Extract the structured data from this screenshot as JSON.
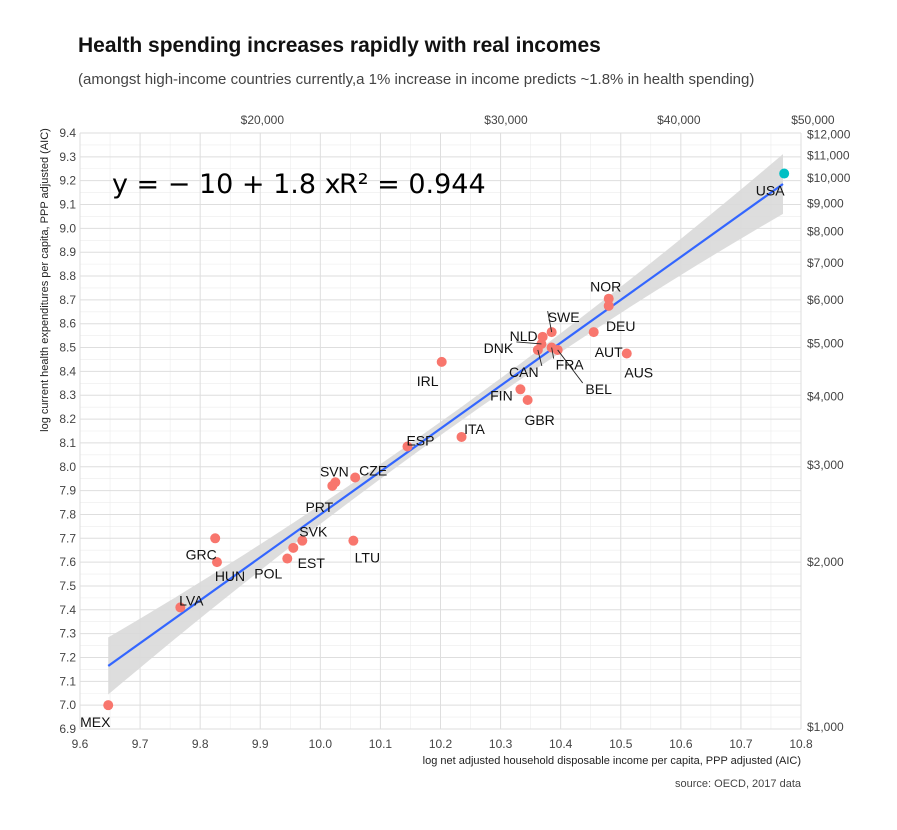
{
  "title": "Health spending increases rapidly with real incomes",
  "subtitle": "(amongst high-income countries currently,a 1% increase in income predicts ~1.8% in health spending)",
  "source": "source: OECD, 2017 data",
  "chart_data": {
    "type": "scatter",
    "xlabel": "log net adjusted household disposable income per capita, PPP adjusted (AIC)",
    "ylabel": "log current health expenditures per capita, PPP adjusted (AIC)",
    "xlim": [
      9.6,
      10.8
    ],
    "ylim": [
      6.9,
      9.4
    ],
    "x_ticks": [
      9.6,
      9.7,
      9.8,
      9.9,
      10.0,
      10.1,
      10.2,
      10.3,
      10.4,
      10.5,
      10.6,
      10.7,
      10.8
    ],
    "y_ticks": [
      6.9,
      7.0,
      7.1,
      7.2,
      7.3,
      7.4,
      7.5,
      7.6,
      7.7,
      7.8,
      7.9,
      8.0,
      8.1,
      8.2,
      8.3,
      8.4,
      8.5,
      8.6,
      8.7,
      8.8,
      8.9,
      9.0,
      9.1,
      9.2,
      9.3,
      9.4
    ],
    "top_axis_ticks": [
      {
        "label": "$20,000",
        "value": 20000
      },
      {
        "label": "$30,000",
        "value": 30000
      },
      {
        "label": "$40,000",
        "value": 40000
      },
      {
        "label": "$50,000",
        "value": 50000
      }
    ],
    "right_axis_ticks": [
      {
        "label": "$1,000",
        "value": 1000
      },
      {
        "label": "$2,000",
        "value": 2000
      },
      {
        "label": "$3,000",
        "value": 3000
      },
      {
        "label": "$4,000",
        "value": 4000
      },
      {
        "label": "$5,000",
        "value": 5000
      },
      {
        "label": "$6,000",
        "value": 6000
      },
      {
        "label": "$7,000",
        "value": 7000
      },
      {
        "label": "$8,000",
        "value": 8000
      },
      {
        "label": "$9,000",
        "value": 9000
      },
      {
        "label": "$10,000",
        "value": 10000
      },
      {
        "label": "$11,000",
        "value": 11000
      },
      {
        "label": "$12,000",
        "value": 12000
      }
    ],
    "equation": "y = − 10 + 1.8 x",
    "r_squared": "R² = 0.944",
    "fit": {
      "intercept": -10.2,
      "slope": 1.8,
      "x_range": [
        9.647,
        10.77
      ]
    },
    "grid": true,
    "colors": {
      "points": "#F8766D",
      "highlight": "#00BFC4",
      "fit_line": "#3366FF",
      "band": "#D9D9D9"
    },
    "points": [
      {
        "label": "MEX",
        "x": 9.647,
        "y": 7.0
      },
      {
        "label": "LVA",
        "x": 9.767,
        "y": 7.41
      },
      {
        "label": "GRC",
        "x": 9.825,
        "y": 7.7
      },
      {
        "label": "HUN",
        "x": 9.828,
        "y": 7.6
      },
      {
        "label": "POL",
        "x": 9.945,
        "y": 7.615
      },
      {
        "label": "EST",
        "x": 9.955,
        "y": 7.66
      },
      {
        "label": "SVK",
        "x": 9.97,
        "y": 7.69
      },
      {
        "label": "LTU",
        "x": 10.055,
        "y": 7.69
      },
      {
        "label": "PRT",
        "x": 10.02,
        "y": 7.92
      },
      {
        "label": "SVN",
        "x": 10.025,
        "y": 7.935
      },
      {
        "label": "CZE",
        "x": 10.058,
        "y": 7.955
      },
      {
        "label": "ESP",
        "x": 10.145,
        "y": 8.085
      },
      {
        "label": "ITA",
        "x": 10.235,
        "y": 8.125
      },
      {
        "label": "IRL",
        "x": 10.202,
        "y": 8.44
      },
      {
        "label": "FIN",
        "x": 10.333,
        "y": 8.325
      },
      {
        "label": "GBR",
        "x": 10.345,
        "y": 8.28
      },
      {
        "label": "CAN",
        "x": 10.362,
        "y": 8.49
      },
      {
        "label": "DNK",
        "x": 10.368,
        "y": 8.515
      },
      {
        "label": "NLD",
        "x": 10.37,
        "y": 8.545
      },
      {
        "label": "SWE",
        "x": 10.385,
        "y": 8.565
      },
      {
        "label": "FRA",
        "x": 10.385,
        "y": 8.5
      },
      {
        "label": "BEL",
        "x": 10.395,
        "y": 8.49
      },
      {
        "label": "AUT",
        "x": 10.455,
        "y": 8.565
      },
      {
        "label": "DEU",
        "x": 10.48,
        "y": 8.675
      },
      {
        "label": "NOR",
        "x": 10.48,
        "y": 8.705
      },
      {
        "label": "AUS",
        "x": 10.51,
        "y": 8.475
      },
      {
        "label": "USA",
        "x": 10.772,
        "y": 9.23,
        "highlight": true
      }
    ]
  }
}
